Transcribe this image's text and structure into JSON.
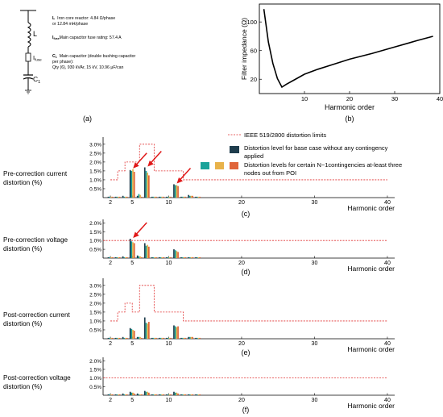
{
  "panel_a": {
    "L_sym": "L",
    "L_desc1": "Iron core reactor: 4.84 Ω/phase",
    "L_desc2": "or 12.84 mH/phase",
    "Ifuse_sym": "I",
    "Ifuse_sub": "fuse",
    "Ifuse_desc": "Main capacitor fuse rating: 57.4 A",
    "C1_sym": "C",
    "C1_sub": "1",
    "C1_desc1": "Main capacitor (double bushing capacitor",
    "C1_desc2": "per phase):",
    "C1_desc3": "Qty (6), 930 kVAr, 15 kV, 10.96 μF/can",
    "caption": "(a)"
  },
  "chart_data": [
    {
      "id": "b",
      "type": "line",
      "xlabel": "Harmonic order",
      "ylabel": "Filter impedance (Ω)",
      "xticks": [
        10,
        20,
        30,
        40
      ],
      "yticks": [
        20,
        60,
        100
      ],
      "xlim": [
        0,
        40
      ],
      "ylim": [
        0,
        125
      ],
      "series": [
        {
          "x": [
            1,
            2,
            3,
            4,
            5,
            6,
            8,
            10,
            13,
            16,
            20,
            25,
            30,
            35,
            38.5
          ],
          "y": [
            118,
            72,
            42,
            21,
            9,
            13,
            20,
            27,
            34,
            40,
            48,
            56,
            65,
            74,
            80
          ]
        }
      ],
      "caption": "(b)"
    },
    {
      "id": "c",
      "type": "bar",
      "ylabel_lines": [
        "Pre-correction current",
        "distortion (%)"
      ],
      "xlabel": "Harmonic order",
      "yticks": [
        0.5,
        1.0,
        1.5,
        2.0,
        2.5,
        3.0
      ],
      "xticks": [
        2,
        5,
        10,
        20,
        30,
        40
      ],
      "ylim": [
        0,
        3.4
      ],
      "xlim": [
        1,
        41
      ],
      "limits": [
        [
          2,
          1.0
        ],
        [
          3,
          1.5
        ],
        [
          4,
          2.0
        ],
        [
          5,
          2.0
        ],
        [
          6,
          3.0
        ],
        [
          7,
          3.0
        ],
        [
          8,
          1.5
        ],
        [
          9,
          1.5
        ],
        [
          10,
          1.5
        ],
        [
          11,
          1.5
        ],
        [
          12,
          1.0
        ],
        [
          40,
          1.0
        ]
      ],
      "harmonics": [
        2,
        3,
        4,
        5,
        6,
        7,
        8,
        9,
        10,
        11,
        12,
        13,
        14
      ],
      "base": [
        0.05,
        0.05,
        0.1,
        1.55,
        0.1,
        1.7,
        0.05,
        0.05,
        0.05,
        0.75,
        0.05,
        0.15,
        0.05
      ],
      "cont1": [
        0.05,
        0.05,
        0.05,
        1.5,
        0.2,
        1.5,
        0.05,
        0.05,
        0.05,
        0.7,
        0.05,
        0.1,
        0.05
      ],
      "cont2": [
        0.05,
        0.05,
        0.05,
        1.6,
        0.15,
        1.4,
        0.05,
        0.05,
        0.05,
        0.7,
        0.05,
        0.1,
        0.05
      ],
      "cont3": [
        0.05,
        0.05,
        0.05,
        1.45,
        0.05,
        1.25,
        0.05,
        0.05,
        0.05,
        0.65,
        0.05,
        0.1,
        0.05
      ],
      "arrows_at": [
        5,
        7,
        11
      ],
      "caption": "(c)"
    },
    {
      "id": "d",
      "type": "bar",
      "ylabel_lines": [
        "Pre-correction voltage",
        "distortion (%)"
      ],
      "xlabel": "Harmonic order",
      "yticks": [
        0.5,
        1.0,
        1.5,
        2.0
      ],
      "xticks": [
        2,
        5,
        10,
        20,
        30,
        40
      ],
      "ylim": [
        0,
        2.2
      ],
      "xlim": [
        1,
        41
      ],
      "limits": [
        [
          1,
          1.0
        ],
        [
          40,
          1.0
        ]
      ],
      "harmonics": [
        2,
        3,
        4,
        5,
        6,
        7,
        8,
        9,
        10,
        11,
        12,
        13,
        14
      ],
      "base": [
        0.05,
        0.05,
        0.1,
        1.1,
        0.15,
        0.85,
        0.05,
        0.05,
        0.05,
        0.5,
        0.05,
        0.05,
        0.05
      ],
      "cont1": [
        0.05,
        0.05,
        0.05,
        0.95,
        0.1,
        0.7,
        0.05,
        0.05,
        0.05,
        0.45,
        0.05,
        0.05,
        0.05
      ],
      "cont2": [
        0.05,
        0.05,
        0.05,
        0.9,
        0.1,
        0.75,
        0.05,
        0.05,
        0.05,
        0.4,
        0.05,
        0.05,
        0.05
      ],
      "cont3": [
        0.05,
        0.05,
        0.05,
        0.85,
        0.05,
        0.65,
        0.05,
        0.05,
        0.05,
        0.35,
        0.05,
        0.05,
        0.05
      ],
      "arrows_at": [
        5
      ],
      "caption": "(d)"
    },
    {
      "id": "e",
      "type": "bar",
      "ylabel_lines": [
        "Post-correction current",
        "distortion (%)"
      ],
      "xlabel": "Harmonic order",
      "yticks": [
        0.5,
        1.0,
        1.5,
        2.0,
        2.5,
        3.0
      ],
      "xticks": [
        2,
        5,
        10,
        20,
        30,
        40
      ],
      "ylim": [
        0,
        3.4
      ],
      "xlim": [
        1,
        41
      ],
      "limits": [
        [
          2,
          1.0
        ],
        [
          3,
          1.5
        ],
        [
          4,
          2.0
        ],
        [
          5,
          1.5
        ],
        [
          6,
          3.0
        ],
        [
          7,
          3.0
        ],
        [
          8,
          1.5
        ],
        [
          9,
          1.5
        ],
        [
          10,
          1.5
        ],
        [
          11,
          1.5
        ],
        [
          12,
          1.0
        ],
        [
          40,
          1.0
        ]
      ],
      "harmonics": [
        2,
        3,
        4,
        5,
        6,
        7,
        8,
        9,
        10,
        11,
        12,
        13,
        14
      ],
      "base": [
        0.05,
        0.05,
        0.1,
        0.6,
        0.1,
        1.2,
        0.05,
        0.05,
        0.05,
        0.75,
        0.05,
        0.1,
        0.05
      ],
      "cont1": [
        0.05,
        0.05,
        0.05,
        0.55,
        0.1,
        0.9,
        0.05,
        0.05,
        0.05,
        0.7,
        0.05,
        0.1,
        0.05
      ],
      "cont2": [
        0.05,
        0.05,
        0.05,
        0.5,
        0.1,
        0.85,
        0.05,
        0.05,
        0.05,
        0.65,
        0.05,
        0.1,
        0.05
      ],
      "cont3": [
        0.05,
        0.05,
        0.05,
        0.45,
        0.05,
        0.95,
        0.05,
        0.05,
        0.05,
        0.7,
        0.05,
        0.1,
        0.05
      ],
      "arrows_at": [],
      "caption": "(e)"
    },
    {
      "id": "f",
      "type": "bar",
      "ylabel_lines": [
        "Post-correction voltage",
        "distortion (%)"
      ],
      "xlabel": "Harmonic order",
      "yticks": [
        0.5,
        1.0,
        1.5,
        2.0
      ],
      "xticks": [
        2,
        5,
        10,
        20,
        30,
        40
      ],
      "ylim": [
        0,
        2.2
      ],
      "xlim": [
        1,
        41
      ],
      "limits": [
        [
          1,
          1.0
        ],
        [
          40,
          1.0
        ]
      ],
      "harmonics": [
        2,
        3,
        4,
        5,
        6,
        7,
        8,
        9,
        10,
        11,
        12,
        13,
        14
      ],
      "base": [
        0.05,
        0.05,
        0.1,
        0.2,
        0.1,
        0.25,
        0.05,
        0.05,
        0.05,
        0.2,
        0.05,
        0.05,
        0.05
      ],
      "cont1": [
        0.05,
        0.05,
        0.05,
        0.15,
        0.05,
        0.2,
        0.05,
        0.05,
        0.05,
        0.15,
        0.05,
        0.05,
        0.05
      ],
      "cont2": [
        0.05,
        0.05,
        0.05,
        0.15,
        0.05,
        0.2,
        0.05,
        0.05,
        0.05,
        0.15,
        0.05,
        0.05,
        0.05
      ],
      "cont3": [
        0.05,
        0.05,
        0.05,
        0.1,
        0.05,
        0.15,
        0.05,
        0.05,
        0.05,
        0.1,
        0.05,
        0.05,
        0.05
      ],
      "arrows_at": [],
      "caption": "(f)"
    }
  ],
  "legend": {
    "limit_label": "IEEE 519/2800 distortion limits",
    "base_label_1": "Distortion level for base case without any contingency",
    "base_label_2": "applied",
    "cont_label_1": "Distortion levels for certain N−1contingencies at-least three",
    "cont_label_2": "nodes out from POI"
  },
  "colors": {
    "base": "#1f3d4d",
    "cont1": "#1aa39a",
    "cont2": "#e8b24a",
    "cont3": "#e0653a",
    "limit": "#e03030",
    "arrow": "#e01818"
  }
}
